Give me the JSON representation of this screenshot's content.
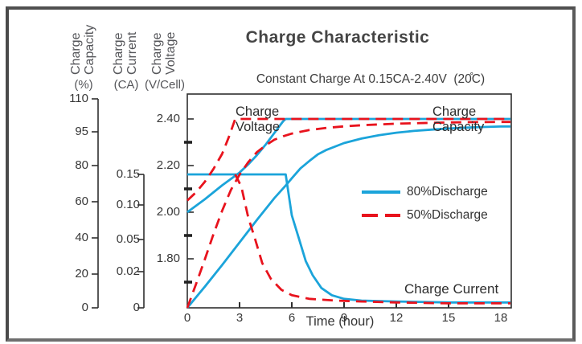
{
  "page": {
    "title": "Charge Characteristic",
    "subtitle": "Constant Charge At 0.15CA-2.40V  (20̊C)"
  },
  "colors": {
    "accent_blue": "#1ba4da",
    "accent_red": "#e8131d",
    "frame_gray": "#4f4f4f",
    "axis_black": "#2f2f2f",
    "text_gray": "#55565a"
  },
  "annotations": {
    "voltage_curve_label": "Charge\nVoltage",
    "capacity_curve_label": "Charge\nCapacity",
    "current_curve_label": "Charge Current"
  },
  "chart_data": {
    "type": "line",
    "title": "Charge Characteristic",
    "subtitle": "Constant Charge At 0.15CA-2.40V (20C)",
    "xlabel": "Time (hour)",
    "xlim": [
      0,
      18
    ],
    "x_ticks": [
      "0",
      "3",
      "6",
      "9",
      "12",
      "15",
      "18"
    ],
    "grid": false,
    "legend_position": "center-right",
    "axes": [
      {
        "id": "capacity",
        "name": "Charge\nCapacity",
        "unit": "(%)",
        "ticks": [
          "110",
          "95",
          "80",
          "60",
          "40",
          "20",
          "0"
        ]
      },
      {
        "id": "current",
        "name": "Charge\nCurrent",
        "unit": "(CA)",
        "ticks": [
          "0.15",
          "0.10",
          "0.05",
          "0.02",
          "0"
        ]
      },
      {
        "id": "voltage",
        "name": "Charge\nVoltage",
        "unit": "(V/Cell)",
        "ticks": [
          "2.40",
          "2.20",
          "2.00",
          "1.80"
        ],
        "minor_ticks": [
          2.3,
          2.1,
          1.9,
          1.7
        ]
      }
    ],
    "legend": [
      {
        "id": "d80",
        "label": "80%Discharge",
        "style": "solid",
        "color": "#1ba4da"
      },
      {
        "id": "d50",
        "label": "50%Discharge",
        "style": "dashed",
        "color": "#e8131d"
      }
    ],
    "series": [
      {
        "name": "Charge Voltage 80%Discharge",
        "axis": "voltage",
        "legend": "d80",
        "points": [
          [
            0,
            2.0
          ],
          [
            1,
            2.055
          ],
          [
            2,
            2.115
          ],
          [
            3,
            2.17
          ],
          [
            3.5,
            2.205
          ],
          [
            4,
            2.245
          ],
          [
            4.5,
            2.29
          ],
          [
            5,
            2.34
          ],
          [
            5.5,
            2.39
          ],
          [
            5.65,
            2.4
          ],
          [
            9,
            2.4
          ],
          [
            12,
            2.4
          ],
          [
            18,
            2.4
          ]
        ]
      },
      {
        "name": "Charge Current 80%Discharge",
        "axis": "current",
        "legend": "d80",
        "points": [
          [
            0,
            0.15
          ],
          [
            5.65,
            0.15
          ],
          [
            6.0,
            0.085
          ],
          [
            6.4,
            0.052
          ],
          [
            6.8,
            0.03
          ],
          [
            7.2,
            0.018
          ],
          [
            7.7,
            0.011
          ],
          [
            8.3,
            0.007
          ],
          [
            9,
            0.005
          ],
          [
            10,
            0.004
          ],
          [
            12,
            0.0035
          ],
          [
            15,
            0.003
          ],
          [
            18,
            0.003
          ]
        ]
      },
      {
        "name": "Charge Capacity 80%Discharge",
        "axis": "capacity",
        "legend": "d80",
        "points": [
          [
            0,
            0
          ],
          [
            1,
            12.5
          ],
          [
            2,
            25
          ],
          [
            3,
            37.5
          ],
          [
            4,
            50
          ],
          [
            5,
            62
          ],
          [
            5.65,
            69
          ],
          [
            6,
            73
          ],
          [
            6.5,
            78.5
          ],
          [
            7,
            82
          ],
          [
            7.5,
            85
          ],
          [
            8,
            87
          ],
          [
            9,
            90
          ],
          [
            10,
            92
          ],
          [
            11,
            93.5
          ],
          [
            12,
            94.6
          ],
          [
            13,
            95.4
          ],
          [
            14,
            96
          ],
          [
            15,
            96.5
          ],
          [
            16,
            96.9
          ],
          [
            17,
            97.2
          ],
          [
            18,
            97.4
          ]
        ]
      },
      {
        "name": "Charge Voltage 50%Discharge",
        "axis": "voltage",
        "legend": "d50",
        "points": [
          [
            0,
            2.05
          ],
          [
            0.5,
            2.085
          ],
          [
            1,
            2.13
          ],
          [
            1.5,
            2.185
          ],
          [
            2,
            2.25
          ],
          [
            2.4,
            2.325
          ],
          [
            2.75,
            2.4
          ],
          [
            9,
            2.4
          ],
          [
            12,
            2.4
          ],
          [
            18,
            2.4
          ]
        ]
      },
      {
        "name": "Charge Current 50%Discharge",
        "axis": "current",
        "legend": "d50",
        "points": [
          [
            2.75,
            0.15
          ],
          [
            3.1,
            0.13
          ],
          [
            3.5,
            0.082
          ],
          [
            3.9,
            0.05
          ],
          [
            4.3,
            0.028
          ],
          [
            4.8,
            0.016
          ],
          [
            5.4,
            0.01
          ],
          [
            6,
            0.007
          ],
          [
            7,
            0.005
          ],
          [
            8.5,
            0.004
          ],
          [
            10,
            0.0035
          ],
          [
            12,
            0.003
          ],
          [
            15,
            0.0025
          ],
          [
            18,
            0.0025
          ]
        ]
      },
      {
        "name": "Charge Capacity 50%Discharge",
        "axis": "capacity",
        "legend": "d50",
        "points": [
          [
            0,
            0
          ],
          [
            0.5,
            14
          ],
          [
            1,
            28
          ],
          [
            1.5,
            42
          ],
          [
            2,
            55
          ],
          [
            2.5,
            66.5
          ],
          [
            3,
            75
          ],
          [
            3.5,
            81.5
          ],
          [
            4,
            86
          ],
          [
            4.5,
            89
          ],
          [
            5,
            91.5
          ],
          [
            5.5,
            93
          ],
          [
            6,
            94.2
          ],
          [
            7,
            95.8
          ],
          [
            8,
            96.8
          ],
          [
            9,
            97.5
          ],
          [
            10,
            98
          ],
          [
            12,
            98.7
          ],
          [
            14,
            99.1
          ],
          [
            16,
            99.4
          ],
          [
            18,
            99.5
          ]
        ]
      }
    ]
  }
}
